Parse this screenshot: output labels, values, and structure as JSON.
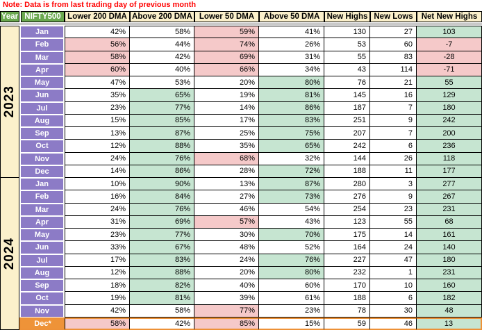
{
  "note": "Note: Data is from last trading day of previous month",
  "colors": {
    "header_green": "#6AA84F",
    "header_cream": "#FBF0CB",
    "month_purple": "#8C7BC6",
    "highlight_orange": "#EE9338",
    "cell_pink": "#F5C9C9",
    "cell_green": "#C6E5D1",
    "cell_white": "#FFFFFF",
    "note_red": "#FF0000"
  },
  "table": {
    "columns": [
      "Year",
      "NIFTY500",
      "Lower 200 DMA",
      "Above 200 DMA",
      "Lower 50 DMA",
      "Above 50 DMA",
      "New Highs",
      "New Lows",
      "Net New Highs"
    ],
    "years": [
      {
        "label": "2023",
        "rows": [
          {
            "month": "Jan",
            "highlight": false,
            "values": [
              "42%",
              "58%",
              "59%",
              "41%",
              "130",
              "27",
              "103"
            ],
            "bgs": [
              "w",
              "w",
              "p",
              "w",
              "w",
              "w",
              "g"
            ]
          },
          {
            "month": "Feb",
            "highlight": false,
            "values": [
              "56%",
              "44%",
              "74%",
              "26%",
              "53",
              "60",
              "-7"
            ],
            "bgs": [
              "p",
              "w",
              "p",
              "w",
              "w",
              "w",
              "p"
            ]
          },
          {
            "month": "Mar",
            "highlight": false,
            "values": [
              "58%",
              "42%",
              "69%",
              "31%",
              "55",
              "83",
              "-28"
            ],
            "bgs": [
              "p",
              "w",
              "p",
              "w",
              "w",
              "w",
              "p"
            ]
          },
          {
            "month": "Apr",
            "highlight": false,
            "values": [
              "60%",
              "40%",
              "66%",
              "34%",
              "43",
              "114",
              "-71"
            ],
            "bgs": [
              "p",
              "w",
              "p",
              "w",
              "w",
              "w",
              "p"
            ]
          },
          {
            "month": "May",
            "highlight": false,
            "values": [
              "47%",
              "53%",
              "20%",
              "80%",
              "76",
              "21",
              "55"
            ],
            "bgs": [
              "w",
              "w",
              "w",
              "g",
              "w",
              "w",
              "g"
            ]
          },
          {
            "month": "Jun",
            "highlight": false,
            "values": [
              "35%",
              "65%",
              "19%",
              "81%",
              "145",
              "16",
              "129"
            ],
            "bgs": [
              "w",
              "g",
              "w",
              "g",
              "w",
              "w",
              "g"
            ]
          },
          {
            "month": "Jul",
            "highlight": false,
            "values": [
              "23%",
              "77%",
              "14%",
              "86%",
              "187",
              "7",
              "180"
            ],
            "bgs": [
              "w",
              "g",
              "w",
              "g",
              "w",
              "w",
              "g"
            ]
          },
          {
            "month": "Aug",
            "highlight": false,
            "values": [
              "15%",
              "85%",
              "17%",
              "83%",
              "251",
              "9",
              "242"
            ],
            "bgs": [
              "w",
              "g",
              "w",
              "g",
              "w",
              "w",
              "g"
            ]
          },
          {
            "month": "Sep",
            "highlight": false,
            "values": [
              "13%",
              "87%",
              "25%",
              "75%",
              "207",
              "7",
              "200"
            ],
            "bgs": [
              "w",
              "g",
              "w",
              "g",
              "w",
              "w",
              "g"
            ]
          },
          {
            "month": "Oct",
            "highlight": false,
            "values": [
              "12%",
              "88%",
              "35%",
              "65%",
              "242",
              "6",
              "236"
            ],
            "bgs": [
              "w",
              "g",
              "w",
              "g",
              "w",
              "w",
              "g"
            ]
          },
          {
            "month": "Nov",
            "highlight": false,
            "values": [
              "24%",
              "76%",
              "68%",
              "32%",
              "144",
              "26",
              "118"
            ],
            "bgs": [
              "w",
              "g",
              "p",
              "w",
              "w",
              "w",
              "g"
            ]
          },
          {
            "month": "Dec",
            "highlight": false,
            "values": [
              "14%",
              "86%",
              "28%",
              "72%",
              "188",
              "11",
              "177"
            ],
            "bgs": [
              "w",
              "g",
              "w",
              "g",
              "w",
              "w",
              "g"
            ]
          }
        ]
      },
      {
        "label": "2024",
        "rows": [
          {
            "month": "Jan",
            "highlight": false,
            "values": [
              "10%",
              "90%",
              "13%",
              "87%",
              "280",
              "3",
              "277"
            ],
            "bgs": [
              "w",
              "g",
              "w",
              "g",
              "w",
              "w",
              "g"
            ]
          },
          {
            "month": "Feb",
            "highlight": false,
            "values": [
              "16%",
              "84%",
              "27%",
              "73%",
              "276",
              "9",
              "267"
            ],
            "bgs": [
              "w",
              "g",
              "w",
              "g",
              "w",
              "w",
              "g"
            ]
          },
          {
            "month": "Mar",
            "highlight": false,
            "values": [
              "24%",
              "76%",
              "46%",
              "54%",
              "254",
              "23",
              "231"
            ],
            "bgs": [
              "w",
              "g",
              "w",
              "w",
              "w",
              "w",
              "g"
            ]
          },
          {
            "month": "Apr",
            "highlight": false,
            "values": [
              "31%",
              "69%",
              "57%",
              "43%",
              "123",
              "55",
              "68"
            ],
            "bgs": [
              "w",
              "g",
              "p",
              "w",
              "w",
              "w",
              "g"
            ]
          },
          {
            "month": "May",
            "highlight": false,
            "values": [
              "23%",
              "77%",
              "30%",
              "70%",
              "175",
              "14",
              "161"
            ],
            "bgs": [
              "w",
              "g",
              "w",
              "g",
              "w",
              "w",
              "g"
            ]
          },
          {
            "month": "Jun",
            "highlight": false,
            "values": [
              "33%",
              "67%",
              "48%",
              "52%",
              "164",
              "24",
              "140"
            ],
            "bgs": [
              "w",
              "g",
              "w",
              "w",
              "w",
              "w",
              "g"
            ]
          },
          {
            "month": "Jul",
            "highlight": false,
            "values": [
              "17%",
              "83%",
              "24%",
              "76%",
              "227",
              "47",
              "180"
            ],
            "bgs": [
              "w",
              "g",
              "w",
              "g",
              "w",
              "w",
              "g"
            ]
          },
          {
            "month": "Aug",
            "highlight": false,
            "values": [
              "12%",
              "88%",
              "20%",
              "80%",
              "232",
              "1",
              "231"
            ],
            "bgs": [
              "w",
              "g",
              "w",
              "g",
              "w",
              "w",
              "g"
            ]
          },
          {
            "month": "Sep",
            "highlight": false,
            "values": [
              "18%",
              "82%",
              "40%",
              "60%",
              "170",
              "10",
              "160"
            ],
            "bgs": [
              "w",
              "g",
              "w",
              "w",
              "w",
              "w",
              "g"
            ]
          },
          {
            "month": "Oct",
            "highlight": false,
            "values": [
              "19%",
              "81%",
              "39%",
              "61%",
              "188",
              "6",
              "182"
            ],
            "bgs": [
              "w",
              "g",
              "w",
              "w",
              "w",
              "w",
              "g"
            ]
          },
          {
            "month": "Nov",
            "highlight": false,
            "values": [
              "42%",
              "58%",
              "77%",
              "23%",
              "78",
              "30",
              "48"
            ],
            "bgs": [
              "w",
              "w",
              "p",
              "w",
              "w",
              "w",
              "g"
            ]
          },
          {
            "month": "Dec*",
            "highlight": true,
            "values": [
              "58%",
              "42%",
              "85%",
              "15%",
              "59",
              "46",
              "13"
            ],
            "bgs": [
              "p",
              "w",
              "p",
              "w",
              "w",
              "w",
              "g"
            ]
          }
        ]
      }
    ]
  }
}
